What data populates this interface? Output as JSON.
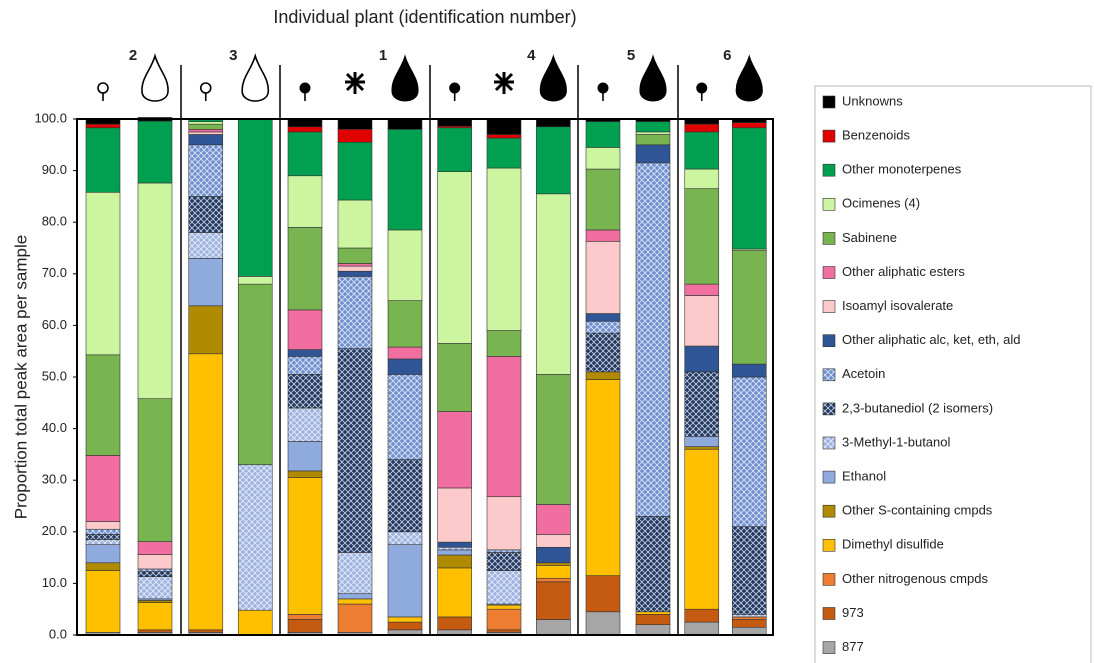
{
  "chart_data": {
    "type": "stacked_bar",
    "title": "Individual plant (identification number)",
    "y_label": "Proportion total peak area per sample",
    "group_labels": [
      "2",
      "3",
      "1",
      "4",
      "5",
      "6"
    ],
    "categories": [
      null,
      null,
      null,
      null,
      null,
      null,
      null,
      null,
      null,
      null,
      null,
      null,
      null,
      null
    ],
    "ylim": [
      0,
      100
    ],
    "yticks": [
      {
        "value": 0,
        "label": "0.0"
      },
      {
        "value": 10,
        "label": "10.0"
      },
      {
        "value": 20,
        "label": "20.0"
      },
      {
        "value": 30,
        "label": "30.0"
      },
      {
        "value": 40,
        "label": "40.0"
      },
      {
        "value": 50,
        "label": "50.0"
      },
      {
        "value": 60,
        "label": "60.0"
      },
      {
        "value": 70,
        "label": "70.0"
      },
      {
        "value": 80,
        "label": "80.0"
      },
      {
        "value": 90,
        "label": "90.0"
      },
      {
        "value": 100,
        "label": "100.0"
      }
    ],
    "grid": false,
    "legend": "right",
    "series": [
      {
        "name": "Unknowns",
        "color": "#000000",
        "values": [
          1,
          0.7,
          0,
          0,
          1.5,
          2,
          2,
          1.4,
          3,
          1.5,
          0.5,
          0.5,
          1,
          0.7
        ]
      },
      {
        "name": "Benzenoids",
        "color": "#e00000",
        "values": [
          0.7,
          0,
          0,
          0,
          1,
          2.5,
          0,
          0.3,
          0.7,
          0,
          0,
          0,
          1.5,
          1
        ]
      },
      {
        "name": "Other monoterpenes",
        "color": "#00a050",
        "values": [
          12.5,
          12,
          0.5,
          30.5,
          8.5,
          11.2,
          19.5,
          8.5,
          5.8,
          13,
          5,
          2,
          7.2,
          23.5
        ]
      },
      {
        "name": "Ocimenes (4)",
        "color": "#ccf5a0",
        "values": [
          31.5,
          41.8,
          0.5,
          1.5,
          10,
          9.3,
          13.7,
          33.3,
          31.5,
          35,
          4.2,
          0.5,
          3.8,
          0.3
        ]
      },
      {
        "name": "Sabinene",
        "color": "#78b450",
        "values": [
          19.5,
          27.7,
          1,
          35,
          16,
          3,
          9,
          13.2,
          5,
          25.2,
          11.8,
          2,
          18.5,
          22
        ]
      },
      {
        "name": "Other aliphatic esters",
        "color": "#f06ea0",
        "values": [
          12.8,
          2.5,
          0.5,
          0,
          7.7,
          0.5,
          2.3,
          14.8,
          27.2,
          5.8,
          2.2,
          0,
          2.2,
          0
        ]
      },
      {
        "name": "Isoamyl isovalerate",
        "color": "#fccaca",
        "values": [
          1.5,
          2.8,
          0.5,
          0,
          0,
          1,
          0,
          10.5,
          10.3,
          2.5,
          14,
          0,
          9.8,
          0
        ]
      },
      {
        "name": "Other aliphatic alc, ket, eth, ald",
        "color": "#2f5597",
        "values": [
          0,
          0,
          2,
          0,
          1.3,
          1,
          3,
          1,
          0,
          3,
          1.5,
          3.5,
          5,
          2.5
        ]
      },
      {
        "name": "Acetoin",
        "color": "#6f8fcf",
        "pattern": "crosshatch",
        "values": [
          1,
          0.5,
          10,
          0,
          3.5,
          14,
          16.5,
          0,
          0.5,
          0,
          2.3,
          68.5,
          0,
          29
        ]
      },
      {
        "name": "2,3-butanediol (2 isomers)",
        "color": "#203864",
        "pattern": "crosshatch",
        "values": [
          1,
          1,
          7,
          0,
          6.5,
          39.5,
          14,
          0,
          3.5,
          0,
          7.5,
          18.5,
          12.5,
          17
        ]
      },
      {
        "name": "3-Methyl-1-butanol",
        "color": "#9db3e0",
        "pattern": "crosshatch",
        "values": [
          1,
          4.3,
          5,
          28.2,
          6.5,
          8,
          2.5,
          0.5,
          6.5,
          0,
          0,
          0,
          0,
          0.5
        ]
      },
      {
        "name": "Ethanol",
        "color": "#8faadc",
        "values": [
          3.5,
          0.3,
          9.2,
          0,
          5.7,
          1,
          14,
          1,
          0.2,
          0,
          0,
          0,
          2,
          0
        ]
      },
      {
        "name": "Other S-containing cmpds",
        "color": "#b08a00",
        "values": [
          1.5,
          0.4,
          9.3,
          0,
          1.3,
          0,
          0,
          2.5,
          0,
          0.5,
          1.5,
          0,
          0.5,
          0
        ]
      },
      {
        "name": "Dimethyl disulfide",
        "color": "#ffc000",
        "values": [
          12,
          5.3,
          53.5,
          4.8,
          26.5,
          1,
          1,
          9.5,
          0.8,
          2.5,
          38,
          0.5,
          31,
          0
        ]
      },
      {
        "name": "Other nitrogenous cmpds",
        "color": "#ed7d31",
        "values": [
          0,
          0,
          0,
          0,
          1,
          5.5,
          0,
          0,
          4,
          0.7,
          0,
          0,
          0,
          0.5
        ]
      },
      {
        "name": "973",
        "color": "#c55a11",
        "values": [
          0,
          0.5,
          0.5,
          0,
          2.5,
          0,
          1.5,
          2.5,
          0.5,
          7.3,
          7,
          2,
          2.5,
          1.5
        ]
      },
      {
        "name": "877",
        "color": "#a6a6a6",
        "values": [
          0.5,
          0.5,
          0.5,
          0,
          0.5,
          0.5,
          1,
          1,
          0.5,
          3,
          4.5,
          2,
          2.5,
          1.5
        ]
      }
    ]
  }
}
